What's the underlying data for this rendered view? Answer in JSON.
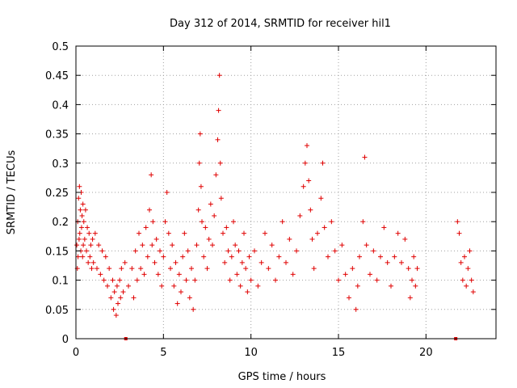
{
  "chart_data": {
    "type": "scatter",
    "title": "Day 312 of 2014, SRMTID for receiver hil1",
    "xlabel": "GPS time / hours",
    "ylabel": "SRMTID / TECUs",
    "xlim": [
      0,
      24
    ],
    "ylim": [
      0,
      0.5
    ],
    "xticks": [
      0,
      5,
      10,
      15,
      20
    ],
    "yticks": [
      0,
      0.05,
      0.1,
      0.15,
      0.2,
      0.25,
      0.3,
      0.35,
      0.4,
      0.45,
      0.5
    ],
    "xtick_labels": [
      "0",
      "5",
      "10",
      "15",
      "20"
    ],
    "ytick_labels": [
      "0",
      "0.05",
      "0.1",
      "0.15",
      "0.2",
      "0.25",
      "0.3",
      "0.35",
      "0.4",
      "0.45",
      "0.5"
    ],
    "grid": true,
    "marker": "+",
    "series_color": "#e00000",
    "data_gaps_at_x": [
      2.85,
      21.7
    ],
    "series": [
      {
        "points": [
          [
            0.05,
            0.16
          ],
          [
            0.08,
            0.12
          ],
          [
            0.1,
            0.2
          ],
          [
            0.12,
            0.14
          ],
          [
            0.15,
            0.24
          ],
          [
            0.18,
            0.17
          ],
          [
            0.2,
            0.26
          ],
          [
            0.22,
            0.18
          ],
          [
            0.25,
            0.22
          ],
          [
            0.28,
            0.15
          ],
          [
            0.3,
            0.25
          ],
          [
            0.32,
            0.19
          ],
          [
            0.35,
            0.21
          ],
          [
            0.38,
            0.14
          ],
          [
            0.4,
            0.23
          ],
          [
            0.42,
            0.16
          ],
          [
            0.45,
            0.2
          ],
          [
            0.5,
            0.17
          ],
          [
            0.55,
            0.22
          ],
          [
            0.6,
            0.15
          ],
          [
            0.65,
            0.19
          ],
          [
            0.7,
            0.13
          ],
          [
            0.75,
            0.18
          ],
          [
            0.8,
            0.14
          ],
          [
            0.85,
            0.16
          ],
          [
            0.9,
            0.12
          ],
          [
            0.95,
            0.17
          ],
          [
            1.0,
            0.13
          ],
          [
            1.1,
            0.18
          ],
          [
            1.2,
            0.12
          ],
          [
            1.3,
            0.16
          ],
          [
            1.4,
            0.11
          ],
          [
            1.5,
            0.15
          ],
          [
            1.6,
            0.1
          ],
          [
            1.7,
            0.14
          ],
          [
            1.8,
            0.09
          ],
          [
            1.9,
            0.12
          ],
          [
            2.0,
            0.07
          ],
          [
            2.1,
            0.1
          ],
          [
            2.15,
            0.05
          ],
          [
            2.2,
            0.08
          ],
          [
            2.3,
            0.04
          ],
          [
            2.35,
            0.09
          ],
          [
            2.4,
            0.06
          ],
          [
            2.5,
            0.1
          ],
          [
            2.55,
            0.07
          ],
          [
            2.6,
            0.12
          ],
          [
            2.7,
            0.08
          ],
          [
            2.8,
            0.13
          ],
          [
            3.0,
            0.09
          ],
          [
            3.2,
            0.12
          ],
          [
            3.3,
            0.07
          ],
          [
            3.4,
            0.15
          ],
          [
            3.5,
            0.1
          ],
          [
            3.6,
            0.18
          ],
          [
            3.7,
            0.12
          ],
          [
            3.8,
            0.16
          ],
          [
            3.9,
            0.11
          ],
          [
            4.0,
            0.19
          ],
          [
            4.1,
            0.14
          ],
          [
            4.2,
            0.22
          ],
          [
            4.3,
            0.28
          ],
          [
            4.35,
            0.16
          ],
          [
            4.4,
            0.2
          ],
          [
            4.5,
            0.13
          ],
          [
            4.6,
            0.17
          ],
          [
            4.7,
            0.11
          ],
          [
            4.8,
            0.15
          ],
          [
            4.9,
            0.09
          ],
          [
            5.0,
            0.14
          ],
          [
            5.1,
            0.2
          ],
          [
            5.2,
            0.25
          ],
          [
            5.3,
            0.18
          ],
          [
            5.4,
            0.12
          ],
          [
            5.5,
            0.16
          ],
          [
            5.6,
            0.09
          ],
          [
            5.7,
            0.13
          ],
          [
            5.8,
            0.06
          ],
          [
            5.9,
            0.11
          ],
          [
            6.0,
            0.08
          ],
          [
            6.1,
            0.14
          ],
          [
            6.2,
            0.18
          ],
          [
            6.3,
            0.1
          ],
          [
            6.4,
            0.15
          ],
          [
            6.5,
            0.07
          ],
          [
            6.6,
            0.12
          ],
          [
            6.7,
            0.05
          ],
          [
            6.8,
            0.1
          ],
          [
            6.9,
            0.16
          ],
          [
            7.0,
            0.22
          ],
          [
            7.05,
            0.3
          ],
          [
            7.1,
            0.35
          ],
          [
            7.15,
            0.26
          ],
          [
            7.2,
            0.2
          ],
          [
            7.3,
            0.14
          ],
          [
            7.4,
            0.19
          ],
          [
            7.5,
            0.12
          ],
          [
            7.6,
            0.17
          ],
          [
            7.7,
            0.23
          ],
          [
            7.8,
            0.16
          ],
          [
            7.9,
            0.21
          ],
          [
            8.0,
            0.28
          ],
          [
            8.1,
            0.34
          ],
          [
            8.15,
            0.39
          ],
          [
            8.2,
            0.45
          ],
          [
            8.25,
            0.3
          ],
          [
            8.3,
            0.24
          ],
          [
            8.4,
            0.18
          ],
          [
            8.5,
            0.13
          ],
          [
            8.6,
            0.19
          ],
          [
            8.7,
            0.15
          ],
          [
            8.8,
            0.1
          ],
          [
            8.9,
            0.14
          ],
          [
            9.0,
            0.2
          ],
          [
            9.1,
            0.16
          ],
          [
            9.2,
            0.11
          ],
          [
            9.3,
            0.15
          ],
          [
            9.4,
            0.09
          ],
          [
            9.5,
            0.13
          ],
          [
            9.6,
            0.18
          ],
          [
            9.7,
            0.12
          ],
          [
            9.8,
            0.08
          ],
          [
            9.9,
            0.14
          ],
          [
            10.0,
            0.1
          ],
          [
            10.2,
            0.15
          ],
          [
            10.4,
            0.09
          ],
          [
            10.6,
            0.13
          ],
          [
            10.8,
            0.18
          ],
          [
            11.0,
            0.12
          ],
          [
            11.2,
            0.16
          ],
          [
            11.4,
            0.1
          ],
          [
            11.6,
            0.14
          ],
          [
            11.8,
            0.2
          ],
          [
            12.0,
            0.13
          ],
          [
            12.2,
            0.17
          ],
          [
            12.4,
            0.11
          ],
          [
            12.6,
            0.15
          ],
          [
            12.8,
            0.21
          ],
          [
            13.0,
            0.26
          ],
          [
            13.1,
            0.3
          ],
          [
            13.2,
            0.33
          ],
          [
            13.3,
            0.27
          ],
          [
            13.4,
            0.22
          ],
          [
            13.5,
            0.17
          ],
          [
            13.6,
            0.12
          ],
          [
            13.8,
            0.18
          ],
          [
            14.0,
            0.24
          ],
          [
            14.1,
            0.3
          ],
          [
            14.2,
            0.19
          ],
          [
            14.4,
            0.14
          ],
          [
            14.6,
            0.2
          ],
          [
            14.8,
            0.15
          ],
          [
            15.0,
            0.1
          ],
          [
            15.2,
            0.16
          ],
          [
            15.4,
            0.11
          ],
          [
            15.6,
            0.07
          ],
          [
            15.8,
            0.12
          ],
          [
            16.0,
            0.05
          ],
          [
            16.1,
            0.09
          ],
          [
            16.2,
            0.14
          ],
          [
            16.4,
            0.2
          ],
          [
            16.5,
            0.31
          ],
          [
            16.6,
            0.16
          ],
          [
            16.8,
            0.11
          ],
          [
            17.0,
            0.15
          ],
          [
            17.2,
            0.1
          ],
          [
            17.4,
            0.14
          ],
          [
            17.6,
            0.19
          ],
          [
            17.8,
            0.13
          ],
          [
            18.0,
            0.09
          ],
          [
            18.2,
            0.14
          ],
          [
            18.4,
            0.18
          ],
          [
            18.6,
            0.13
          ],
          [
            18.8,
            0.17
          ],
          [
            19.0,
            0.12
          ],
          [
            19.1,
            0.07
          ],
          [
            19.2,
            0.1
          ],
          [
            19.3,
            0.14
          ],
          [
            19.4,
            0.09
          ],
          [
            19.5,
            0.12
          ],
          [
            21.8,
            0.2
          ],
          [
            21.9,
            0.18
          ],
          [
            22.0,
            0.13
          ],
          [
            22.1,
            0.1
          ],
          [
            22.2,
            0.14
          ],
          [
            22.3,
            0.09
          ],
          [
            22.4,
            0.12
          ],
          [
            22.5,
            0.15
          ],
          [
            22.6,
            0.1
          ],
          [
            22.7,
            0.08
          ]
        ]
      }
    ]
  }
}
